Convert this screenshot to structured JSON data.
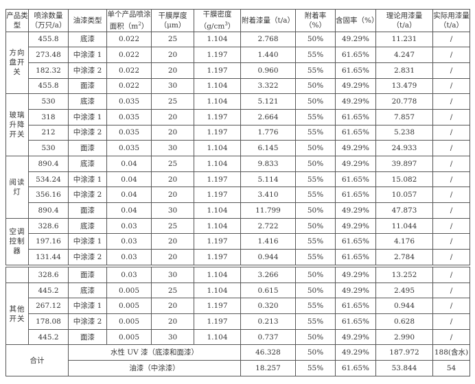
{
  "headers": [
    "产品类型",
    "喷涂数量（万只/a）",
    "油漆类型",
    "单个产品喷涂面积（m²）",
    "干膜厚度（μm）",
    "干膜密度（g/cm³）",
    "附着漆量（t/a）",
    "附着率（%）",
    "含固率（%）",
    "理论用漆量（t/a）",
    "实际用漆量（t/a）"
  ],
  "groups": [
    {
      "product": "方向盘开关",
      "rows": [
        [
          "455.8",
          "底漆",
          "0.022",
          "25",
          "1.104",
          "2.768",
          "50%",
          "49.29%",
          "11.231",
          "/"
        ],
        [
          "273.48",
          "中涂漆 1",
          "0.022",
          "20",
          "1.197",
          "1.440",
          "55%",
          "61.65%",
          "4.247",
          "/"
        ],
        [
          "182.32",
          "中涂漆 2",
          "0.022",
          "20",
          "1.197",
          "0.960",
          "55%",
          "61.65%",
          "2.831",
          "/"
        ],
        [
          "455.8",
          "面漆",
          "0.022",
          "30",
          "1.104",
          "3.322",
          "50%",
          "49.29%",
          "13.479",
          "/"
        ]
      ]
    },
    {
      "product": "玻璃升降开关",
      "rows": [
        [
          "530",
          "底漆",
          "0.035",
          "25",
          "1.104",
          "5.121",
          "50%",
          "49.29%",
          "20.778",
          "/"
        ],
        [
          "318",
          "中涂漆 1",
          "0.035",
          "20",
          "1.197",
          "2.664",
          "55%",
          "61.65%",
          "7.857",
          "/"
        ],
        [
          "212",
          "中涂漆 2",
          "0.035",
          "20",
          "1.197",
          "1.776",
          "55%",
          "61.65%",
          "5.238",
          "/"
        ],
        [
          "530",
          "面漆",
          "0.035",
          "30",
          "1.104",
          "6.145",
          "50%",
          "49.29%",
          "24.933",
          "/"
        ]
      ]
    },
    {
      "product": "阅读灯",
      "rows": [
        [
          "890.4",
          "底漆",
          "0.04",
          "25",
          "1.104",
          "9.833",
          "50%",
          "49.29%",
          "39.897",
          "/"
        ],
        [
          "534.24",
          "中涂漆 1",
          "0.04",
          "20",
          "1.197",
          "5.114",
          "55%",
          "61.65%",
          "15.082",
          "/"
        ],
        [
          "356.16",
          "中涂漆 2",
          "0.04",
          "20",
          "1.197",
          "3.410",
          "55%",
          "61.65%",
          "10.057",
          "/"
        ],
        [
          "890.4",
          "面漆",
          "0.04",
          "30",
          "1.104",
          "11.799",
          "50%",
          "49.29%",
          "47.873",
          "/"
        ]
      ]
    },
    {
      "product": "空调控制器",
      "rows": [
        [
          "328.6",
          "底漆",
          "0.03",
          "25",
          "1.104",
          "2.722",
          "50%",
          "49.29%",
          "11.044",
          "/"
        ],
        [
          "197.16",
          "中涂漆 1",
          "0.03",
          "20",
          "1.197",
          "1.416",
          "55%",
          "61.65%",
          "4.176",
          "/"
        ],
        [
          "131.44",
          "中涂漆 2",
          "0.03",
          "20",
          "1.197",
          "0.944",
          "55%",
          "61.65%",
          "2.784",
          "/"
        ]
      ]
    }
  ],
  "continued": {
    "product": "",
    "rows": [
      [
        "328.6",
        "面漆",
        "0.03",
        "30",
        "1.104",
        "3.266",
        "50%",
        "49.29%",
        "13.252",
        "/"
      ]
    ]
  },
  "other": {
    "product": "其他开关",
    "rows": [
      [
        "445.2",
        "底漆",
        "0.005",
        "25",
        "1.104",
        "0.615",
        "50%",
        "49.29%",
        "2.495",
        "/"
      ],
      [
        "267.12",
        "中涂漆 1",
        "0.005",
        "20",
        "1.197",
        "0.320",
        "55%",
        "61.65%",
        "0.944",
        "/"
      ],
      [
        "178.08",
        "中涂漆 2",
        "0.005",
        "20",
        "1.197",
        "0.213",
        "55%",
        "61.65%",
        "0.628",
        "/"
      ],
      [
        "445.2",
        "面漆",
        "0.005",
        "30",
        "1.104",
        "0.737",
        "50%",
        "49.29%",
        "2.990",
        "/"
      ]
    ]
  },
  "totals": {
    "label": "合计",
    "rows": [
      [
        "水性 UV 漆（底漆和面漆）",
        "46.328",
        "50%",
        "49.29%",
        "187.972",
        "188(含水)"
      ],
      [
        "油漆（中涂漆）",
        "18.257",
        "55%",
        "61.65%",
        "53.844",
        "54"
      ]
    ]
  }
}
